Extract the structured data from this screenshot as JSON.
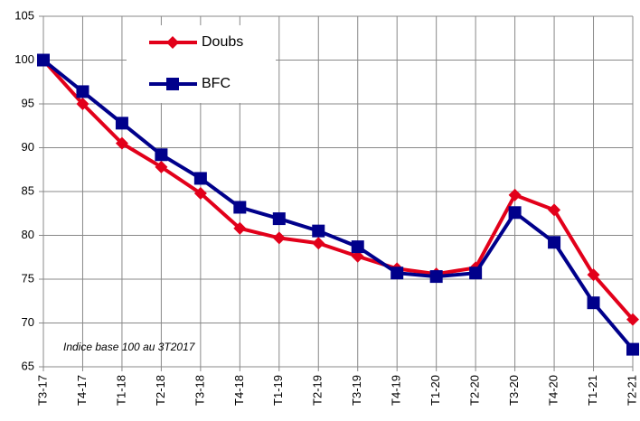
{
  "chart_data": {
    "type": "line",
    "annotation": "Indice base 100 au 3T2017",
    "categories": [
      "T3-17",
      "T4-17",
      "T1-18",
      "T2-18",
      "T3-18",
      "T4-18",
      "T1-19",
      "T2-19",
      "T3-19",
      "T4-19",
      "T1-20",
      "T2-20",
      "T3-20",
      "T4-20",
      "T1-21",
      "T2-21"
    ],
    "series": [
      {
        "name": "Doubs",
        "color": "#e2001a",
        "marker": "diamond",
        "values": [
          100,
          95,
          90.5,
          87.8,
          84.8,
          80.8,
          79.7,
          79.1,
          77.6,
          76.2,
          75.6,
          76.3,
          84.6,
          82.9,
          75.5,
          70.4
        ]
      },
      {
        "name": "BFC",
        "color": "#00008b",
        "marker": "square",
        "values": [
          100,
          96.4,
          92.8,
          89.2,
          86.5,
          83.2,
          81.9,
          80.5,
          78.7,
          75.7,
          75.3,
          75.7,
          82.6,
          79.2,
          72.3,
          67.0
        ]
      }
    ],
    "ylim": [
      65,
      105
    ],
    "yticks": [
      65,
      70,
      75,
      80,
      85,
      90,
      95,
      100,
      105
    ],
    "grid": true,
    "legend": "upper left"
  }
}
